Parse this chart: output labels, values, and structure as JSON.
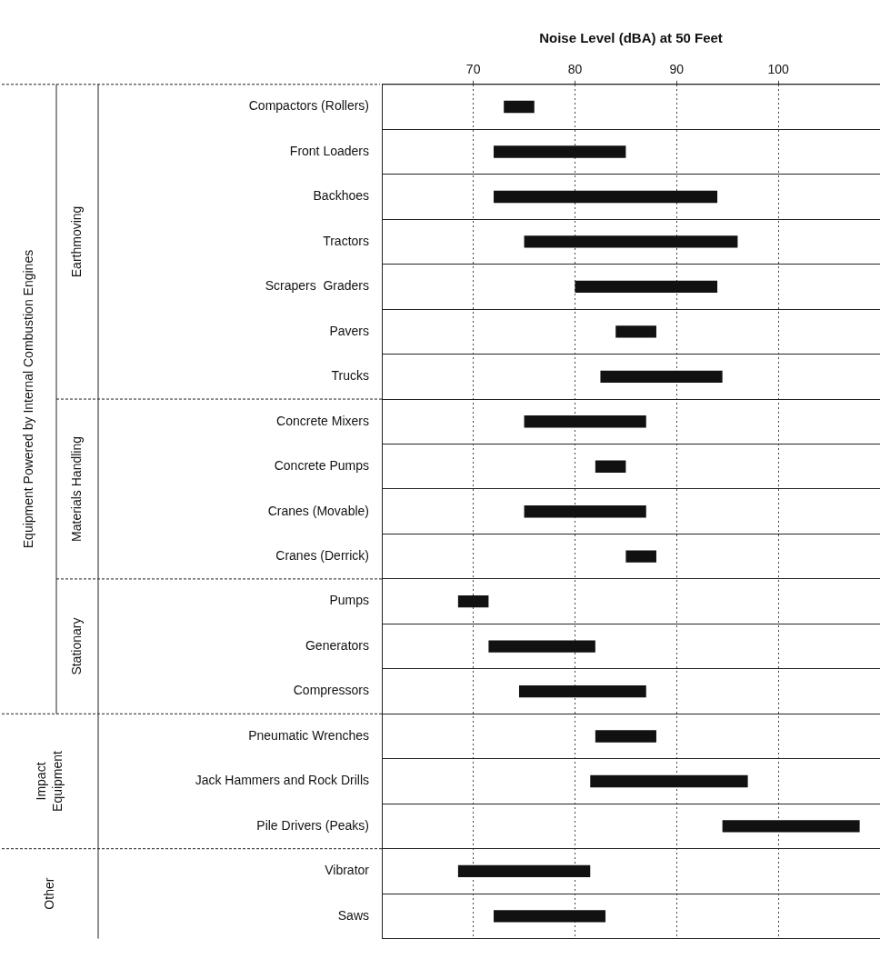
{
  "chart_data": {
    "type": "bar",
    "orientation": "horizontal",
    "xlabel": "Noise Level (dBA) at 50 Feet",
    "categories": [
      "Compactors (Rollers)",
      "Front Loaders",
      "Backhoes",
      "Tractors",
      "Scrapers  Graders",
      "Pavers",
      "Trucks",
      "Concrete Mixers",
      "Concrete Pumps",
      "Cranes (Movable)",
      "Cranes (Derrick)",
      "Pumps",
      "Generators",
      "Compressors",
      "Pneumatic Wrenches",
      "Jack Hammers and Rock Drills",
      "Pile Drivers (Peaks)",
      "Vibrator",
      "Saws"
    ],
    "base": [
      73,
      72,
      72,
      75,
      80,
      84,
      82.5,
      75,
      82,
      75,
      85,
      68.5,
      71.5,
      74.5,
      82,
      81.5,
      94.5,
      68.5,
      72
    ],
    "values": [
      3,
      13,
      22,
      21,
      14,
      4,
      12,
      12,
      3,
      12,
      3,
      3,
      10.5,
      12.5,
      6,
      15.5,
      13.5,
      13,
      11
    ],
    "color": "#111111",
    "xlim": [
      61,
      110
    ],
    "xticks": [
      70,
      80,
      90,
      100
    ],
    "grid": true,
    "annotations": [
      "Equipment Powered by Internal Combustion Engines",
      "Earthmoving",
      "Materials Handling",
      "Stationary",
      "Impact Equipment",
      "Other"
    ]
  }
}
